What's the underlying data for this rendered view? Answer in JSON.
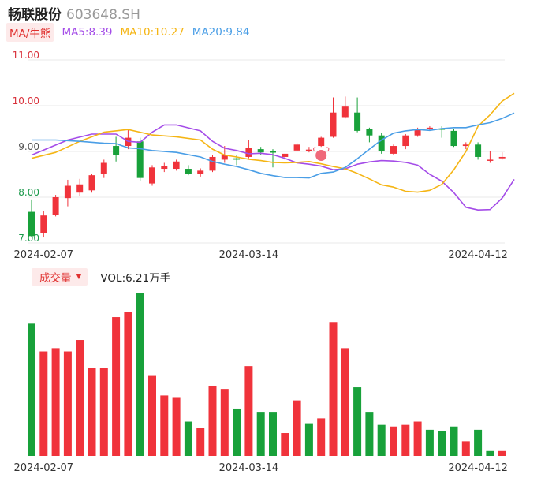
{
  "stock": {
    "name": "畅联股份",
    "code": "603648.SH"
  },
  "ma_legend": {
    "toggle": "MA/牛熊",
    "items": [
      {
        "label": "MA5:8.39",
        "color": "#a44ce8"
      },
      {
        "label": "MA10:10.27",
        "color": "#f5b514"
      },
      {
        "label": "MA20:9.84",
        "color": "#4a9ee6"
      }
    ]
  },
  "volume_legend": {
    "toggle": "成交量",
    "vol_label": "VOL:6.21万手"
  },
  "colors": {
    "up": "#f0333b",
    "down": "#18a13a",
    "grid": "#e8e8e8",
    "axis_text": "#d9303a",
    "date_text": "#333333",
    "bull_badge": "#f0697a"
  },
  "chart_data": [
    {
      "type": "candlestick",
      "y_ticks": [
        "7.00",
        "8.00",
        "9.00",
        "10.00",
        "11.00"
      ],
      "y_tick_colors": [
        "#1c9a4c",
        "#1c9a4c",
        "#555555",
        "#d9303a",
        "#d9303a"
      ],
      "ylim": [
        7.0,
        11.0
      ],
      "x_tick_labels": [
        {
          "label": "2024-02-07",
          "index": 1
        },
        {
          "label": "2024-03-14",
          "index": 18
        },
        {
          "label": "2024-04-12",
          "index": 37
        }
      ],
      "candles": [
        {
          "o": 7.68,
          "h": 7.95,
          "l": 7.12,
          "c": 7.15
        },
        {
          "o": 7.22,
          "h": 7.7,
          "l": 7.12,
          "c": 7.6
        },
        {
          "o": 7.62,
          "h": 8.05,
          "l": 7.58,
          "c": 8.0
        },
        {
          "o": 7.98,
          "h": 8.38,
          "l": 7.8,
          "c": 8.25
        },
        {
          "o": 8.1,
          "h": 8.4,
          "l": 8.02,
          "c": 8.28
        },
        {
          "o": 8.15,
          "h": 8.5,
          "l": 8.1,
          "c": 8.48
        },
        {
          "o": 8.5,
          "h": 8.82,
          "l": 8.42,
          "c": 8.75
        },
        {
          "o": 9.12,
          "h": 9.32,
          "l": 8.78,
          "c": 8.92
        },
        {
          "o": 9.12,
          "h": 9.5,
          "l": 9.05,
          "c": 9.3
        },
        {
          "o": 9.22,
          "h": 9.3,
          "l": 8.35,
          "c": 8.42
        },
        {
          "o": 8.3,
          "h": 8.7,
          "l": 8.25,
          "c": 8.65
        },
        {
          "o": 8.62,
          "h": 8.75,
          "l": 8.55,
          "c": 8.68
        },
        {
          "o": 8.62,
          "h": 8.82,
          "l": 8.58,
          "c": 8.78
        },
        {
          "o": 8.62,
          "h": 8.7,
          "l": 8.48,
          "c": 8.5
        },
        {
          "o": 8.5,
          "h": 8.63,
          "l": 8.45,
          "c": 8.58
        },
        {
          "o": 8.58,
          "h": 8.92,
          "l": 8.55,
          "c": 8.88
        },
        {
          "o": 8.82,
          "h": 9.12,
          "l": 8.75,
          "c": 8.92
        },
        {
          "o": 8.85,
          "h": 8.92,
          "l": 8.7,
          "c": 8.82
        },
        {
          "o": 8.88,
          "h": 9.25,
          "l": 8.85,
          "c": 9.08
        },
        {
          "o": 9.05,
          "h": 9.1,
          "l": 8.92,
          "c": 8.98
        },
        {
          "o": 9.0,
          "h": 9.05,
          "l": 8.65,
          "c": 8.98
        },
        {
          "o": 8.88,
          "h": 8.95,
          "l": 8.82,
          "c": 8.95
        },
        {
          "o": 9.02,
          "h": 9.18,
          "l": 9.0,
          "c": 9.15
        },
        {
          "o": 9.02,
          "h": 9.1,
          "l": 8.98,
          "c": 9.04
        },
        {
          "o": 9.12,
          "h": 9.32,
          "l": 9.1,
          "c": 9.3
        },
        {
          "o": 9.32,
          "h": 10.18,
          "l": 9.3,
          "c": 9.85
        },
        {
          "o": 9.75,
          "h": 10.2,
          "l": 9.72,
          "c": 9.98
        },
        {
          "o": 9.85,
          "h": 10.18,
          "l": 9.42,
          "c": 9.45
        },
        {
          "o": 9.5,
          "h": 9.52,
          "l": 9.2,
          "c": 9.35
        },
        {
          "o": 9.35,
          "h": 9.4,
          "l": 8.95,
          "c": 9.0
        },
        {
          "o": 8.95,
          "h": 9.15,
          "l": 8.92,
          "c": 9.12
        },
        {
          "o": 9.12,
          "h": 9.38,
          "l": 9.05,
          "c": 9.35
        },
        {
          "o": 9.35,
          "h": 9.52,
          "l": 9.32,
          "c": 9.5
        },
        {
          "o": 9.5,
          "h": 9.55,
          "l": 9.45,
          "c": 9.52
        },
        {
          "o": 9.5,
          "h": 9.55,
          "l": 9.3,
          "c": 9.48
        },
        {
          "o": 9.45,
          "h": 9.5,
          "l": 9.1,
          "c": 9.12
        },
        {
          "o": 9.12,
          "h": 9.2,
          "l": 9.05,
          "c": 9.15
        },
        {
          "o": 9.15,
          "h": 9.2,
          "l": 8.82,
          "c": 8.88
        },
        {
          "o": 8.8,
          "h": 9.0,
          "l": 8.75,
          "c": 8.82
        },
        {
          "o": 8.85,
          "h": 8.98,
          "l": 8.82,
          "c": 8.88
        }
      ],
      "ma_series": [
        {
          "name": "MA5",
          "color": "#a44ce8",
          "points": [
            [
              0,
              8.92
            ],
            [
              3,
              9.25
            ],
            [
              5,
              9.38
            ],
            [
              7,
              9.38
            ],
            [
              8,
              9.22
            ],
            [
              9,
              9.2
            ],
            [
              10,
              9.42
            ],
            [
              11,
              9.58
            ],
            [
              12,
              9.58
            ],
            [
              14,
              9.45
            ],
            [
              15,
              9.22
            ],
            [
              16,
              9.07
            ],
            [
              17,
              9.02
            ],
            [
              18,
              8.95
            ],
            [
              19,
              8.96
            ],
            [
              20,
              8.93
            ],
            [
              21,
              8.85
            ],
            [
              22,
              8.75
            ],
            [
              23,
              8.72
            ],
            [
              24,
              8.68
            ],
            [
              25,
              8.6
            ],
            [
              26,
              8.62
            ],
            [
              27,
              8.72
            ],
            [
              28,
              8.77
            ],
            [
              29,
              8.8
            ],
            [
              30,
              8.79
            ],
            [
              31,
              8.76
            ],
            [
              32,
              8.7
            ],
            [
              33,
              8.5
            ],
            [
              34,
              8.35
            ],
            [
              35,
              8.1
            ],
            [
              36,
              7.78
            ],
            [
              37,
              7.72
            ],
            [
              38,
              7.73
            ],
            [
              39,
              7.98
            ],
            [
              40,
              8.39
            ]
          ]
        },
        {
          "name": "MA10",
          "color": "#f5b514",
          "points": [
            [
              0,
              8.85
            ],
            [
              2,
              8.98
            ],
            [
              4,
              9.22
            ],
            [
              6,
              9.42
            ],
            [
              8,
              9.48
            ],
            [
              9,
              9.42
            ],
            [
              10,
              9.36
            ],
            [
              12,
              9.32
            ],
            [
              14,
              9.25
            ],
            [
              15,
              9.05
            ],
            [
              16,
              8.92
            ],
            [
              17,
              8.88
            ],
            [
              18,
              8.83
            ],
            [
              19,
              8.8
            ],
            [
              20,
              8.76
            ],
            [
              21,
              8.75
            ],
            [
              22,
              8.76
            ],
            [
              23,
              8.78
            ],
            [
              24,
              8.73
            ],
            [
              25,
              8.67
            ],
            [
              26,
              8.62
            ],
            [
              27,
              8.52
            ],
            [
              28,
              8.4
            ],
            [
              29,
              8.27
            ],
            [
              30,
              8.22
            ],
            [
              31,
              8.13
            ],
            [
              32,
              8.11
            ],
            [
              33,
              8.15
            ],
            [
              34,
              8.28
            ],
            [
              35,
              8.6
            ],
            [
              36,
              9.0
            ],
            [
              37,
              9.55
            ],
            [
              38,
              9.8
            ],
            [
              39,
              10.1
            ],
            [
              40,
              10.27
            ]
          ]
        },
        {
          "name": "MA20",
          "color": "#4a9ee6",
          "points": [
            [
              0,
              9.25
            ],
            [
              2,
              9.25
            ],
            [
              4,
              9.22
            ],
            [
              6,
              9.18
            ],
            [
              7,
              9.17
            ],
            [
              8,
              9.08
            ],
            [
              9,
              9.06
            ],
            [
              10,
              9.02
            ],
            [
              12,
              8.98
            ],
            [
              14,
              8.88
            ],
            [
              15,
              8.78
            ],
            [
              16,
              8.72
            ],
            [
              17,
              8.67
            ],
            [
              18,
              8.6
            ],
            [
              19,
              8.52
            ],
            [
              20,
              8.47
            ],
            [
              21,
              8.43
            ],
            [
              22,
              8.43
            ],
            [
              23,
              8.42
            ],
            [
              24,
              8.52
            ],
            [
              25,
              8.55
            ],
            [
              26,
              8.65
            ],
            [
              27,
              8.84
            ],
            [
              28,
              9.05
            ],
            [
              29,
              9.25
            ],
            [
              30,
              9.4
            ],
            [
              31,
              9.45
            ],
            [
              32,
              9.48
            ],
            [
              33,
              9.46
            ],
            [
              34,
              9.5
            ],
            [
              35,
              9.52
            ],
            [
              36,
              9.52
            ],
            [
              37,
              9.58
            ],
            [
              38,
              9.63
            ],
            [
              39,
              9.72
            ],
            [
              40,
              9.84
            ]
          ]
        }
      ]
    },
    {
      "type": "bar",
      "title": "",
      "volumes": [
        0.81,
        0.64,
        0.66,
        0.64,
        0.71,
        0.54,
        0.54,
        0.85,
        0.88,
        1.0,
        0.49,
        0.37,
        0.36,
        0.21,
        0.17,
        0.43,
        0.41,
        0.29,
        0.55,
        0.27,
        0.27,
        0.14,
        0.34,
        0.2,
        0.23,
        0.82,
        0.66,
        0.42,
        0.27,
        0.19,
        0.18,
        0.19,
        0.21,
        0.16,
        0.15,
        0.18,
        0.09,
        0.16,
        0.03,
        0.03
      ],
      "volume_colors": [
        "down",
        "up",
        "up",
        "up",
        "up",
        "up",
        "up",
        "up",
        "up",
        "down",
        "up",
        "up",
        "up",
        "down",
        "up",
        "up",
        "up",
        "down",
        "up",
        "down",
        "down",
        "up",
        "up",
        "down",
        "up",
        "up",
        "up",
        "down",
        "down",
        "down",
        "up",
        "up",
        "up",
        "down",
        "down",
        "down",
        "up",
        "down",
        "down",
        "up"
      ],
      "x_tick_labels": [
        {
          "label": "2024-02-07",
          "index": 1
        },
        {
          "label": "2024-03-14",
          "index": 18
        },
        {
          "label": "2024-04-12",
          "index": 37
        }
      ]
    }
  ]
}
